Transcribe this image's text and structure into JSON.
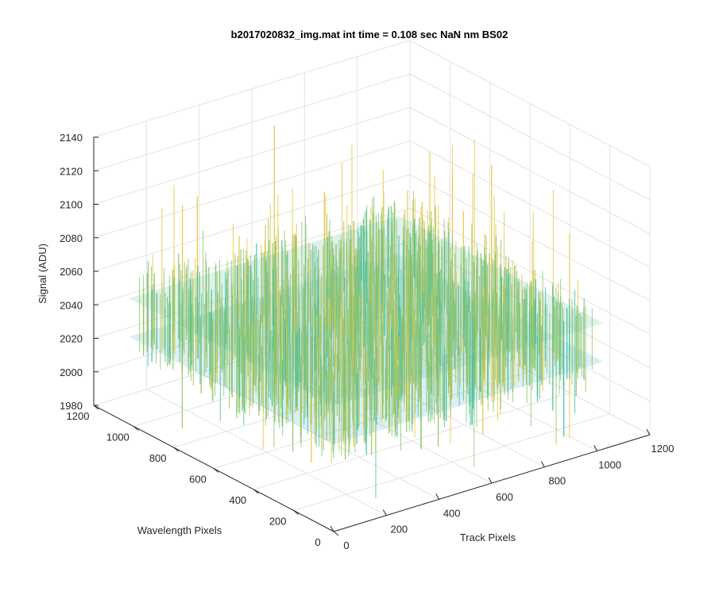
{
  "chart_data": {
    "type": "surface",
    "title": "b2017020832_img.mat int time = 0.108 sec  NaN nm BS02",
    "xlabel": "Track Pixels",
    "ylabel": "Wavelength Pixels",
    "zlabel": "Signal (ADU)",
    "xlim": [
      0,
      1200
    ],
    "ylim": [
      0,
      1200
    ],
    "zlim": [
      1980,
      2140
    ],
    "x_ticks": [
      "0",
      "200",
      "400",
      "600",
      "800",
      "1000",
      "1200"
    ],
    "y_ticks": [
      "0",
      "200",
      "400",
      "600",
      "800",
      "1000",
      "1200"
    ],
    "z_ticks": [
      "1980",
      "2000",
      "2020",
      "2040",
      "2060",
      "2080",
      "2100",
      "2120",
      "2140"
    ],
    "data_extent": {
      "x": [
        0,
        1024
      ],
      "y": [
        0,
        1024
      ]
    },
    "baseline_signal": 2040,
    "noise_range": [
      1990,
      2135
    ],
    "colormap": [
      "#0072bd",
      "#1aa3d6",
      "#3fbfa0",
      "#8cc46a",
      "#e6c53a"
    ],
    "grid": true
  }
}
